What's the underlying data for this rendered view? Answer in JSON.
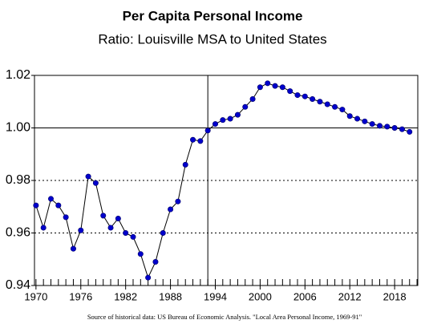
{
  "chart_data": {
    "type": "line",
    "title": "Per Capita Personal Income",
    "subtitle": "Ratio: Louisville MSA to United States",
    "source": "Source of historical data: US Bureau of Economic Analysis. \"Local Area Personal Income, 1969-91\"",
    "x": [
      1970,
      1971,
      1972,
      1973,
      1974,
      1975,
      1976,
      1977,
      1978,
      1979,
      1980,
      1981,
      1982,
      1983,
      1984,
      1985,
      1986,
      1987,
      1988,
      1989,
      1990,
      1991,
      1992,
      1993,
      1994,
      1995,
      1996,
      1997,
      1998,
      1999,
      2000,
      2001,
      2002,
      2003,
      2004,
      2005,
      2006,
      2007,
      2008,
      2009,
      2010,
      2011,
      2012,
      2013,
      2014,
      2015,
      2016,
      2017,
      2018,
      2019,
      2020
    ],
    "series": [
      {
        "color": "#0000cc",
        "values": [
          0.9705,
          0.962,
          0.973,
          0.9705,
          0.966,
          0.954,
          0.961,
          0.9815,
          0.979,
          0.9666,
          0.962,
          0.9655,
          0.96,
          0.9585,
          0.952,
          0.943,
          0.949,
          0.96,
          0.969,
          0.972,
          0.986,
          0.9955,
          0.995,
          0.999,
          1.0015,
          1.003,
          1.0035,
          1.005,
          1.008,
          1.011,
          1.0155,
          1.017,
          1.016,
          1.0155,
          1.014,
          1.0125,
          1.012,
          1.011,
          1.01,
          1.009,
          1.008,
          1.007,
          1.0045,
          1.0035,
          1.0025,
          1.0015,
          1.0008,
          1.0005,
          1.0,
          0.9995,
          0.9985
        ]
      }
    ],
    "xlim": [
      1969.8,
      2021.1
    ],
    "xticks": [
      1970,
      1976,
      1982,
      1988,
      1994,
      2000,
      2006,
      2012,
      2018
    ],
    "ylim": [
      0.94,
      1.02
    ],
    "yticks": [
      0.94,
      0.96,
      0.98,
      {
        "value": 1.0,
        "label": "1.00"
      },
      1.02
    ],
    "reference_lines": {
      "x": 1993,
      "y": 1.0
    }
  }
}
